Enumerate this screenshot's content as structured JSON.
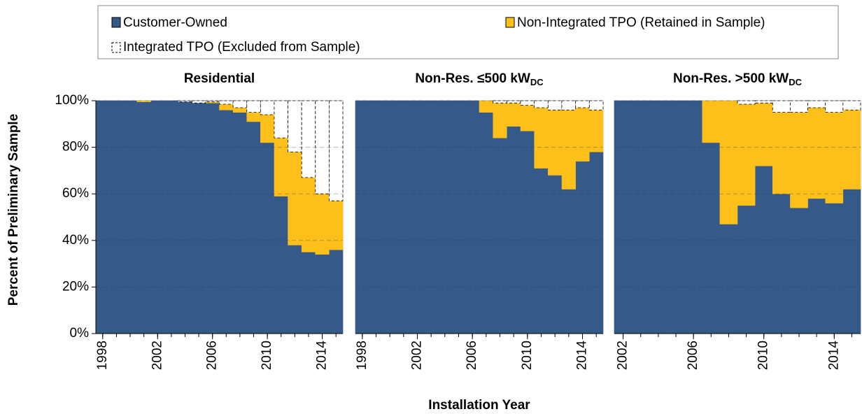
{
  "y_label": "Percent of Preliminary Sample",
  "x_label": "Installation Year",
  "chart_data": [
    {
      "type": "stacked-step",
      "title": "Residential",
      "x": [
        1998,
        1999,
        2000,
        2001,
        2002,
        2003,
        2004,
        2005,
        2006,
        2007,
        2008,
        2009,
        2010,
        2011,
        2012,
        2013,
        2014,
        2015
      ],
      "xlim": [
        1997.5,
        2015.5
      ],
      "xticks": [
        1998,
        2002,
        2006,
        2010,
        2014
      ],
      "ylim": [
        0,
        100
      ],
      "yticks": [
        {
          "value": 0,
          "label": "0%"
        },
        {
          "value": 20,
          "label": "20%"
        },
        {
          "value": 40,
          "label": "40%"
        },
        {
          "value": 60,
          "label": "60%"
        },
        {
          "value": 80,
          "label": "80%"
        },
        {
          "value": 100,
          "label": "100%"
        }
      ],
      "grid": true,
      "series": [
        {
          "name": "Customer-Owned",
          "color": "#355a8a",
          "values": [
            100,
            100,
            100,
            99.5,
            100,
            100,
            99.5,
            99,
            99,
            96,
            95,
            91,
            82,
            59,
            38,
            35,
            34,
            36
          ]
        },
        {
          "name": "Non-Integrated TPO (Retained in Sample)",
          "color": "#fdc01a",
          "values": [
            0,
            0,
            0,
            0.5,
            0,
            0,
            0,
            0,
            0.5,
            2.5,
            2,
            4,
            12,
            25,
            40,
            32,
            26,
            21
          ]
        },
        {
          "name": "Integrated TPO (Excluded from Sample)",
          "color": "#ffffff",
          "values": [
            0,
            0,
            0,
            0,
            0,
            0,
            0.5,
            1,
            0.5,
            1.5,
            3,
            5,
            6,
            16,
            22,
            33,
            40,
            43
          ]
        }
      ]
    },
    {
      "type": "stacked-step",
      "title": "Non-Res. ≤500 kW",
      "title_subscript": "DC",
      "x": [
        1998,
        1999,
        2000,
        2001,
        2002,
        2003,
        2004,
        2005,
        2006,
        2007,
        2008,
        2009,
        2010,
        2011,
        2012,
        2013,
        2014,
        2015
      ],
      "xlim": [
        1997.5,
        2015.5
      ],
      "xticks": [
        1998,
        2002,
        2006,
        2010,
        2014
      ],
      "series": [
        {
          "values": [
            100,
            100,
            100,
            100,
            100,
            100,
            100,
            100,
            100,
            95,
            84,
            89,
            87,
            71,
            68,
            62,
            74,
            78
          ]
        },
        {
          "values": [
            0,
            0,
            0,
            0,
            0,
            0,
            0,
            0,
            0,
            5,
            15,
            10,
            11,
            26,
            28,
            34,
            23,
            18
          ]
        },
        {
          "values": [
            0,
            0,
            0,
            0,
            0,
            0,
            0,
            0,
            0,
            0,
            1,
            1,
            2,
            3,
            4,
            4,
            3,
            4
          ]
        }
      ]
    },
    {
      "type": "stacked-step",
      "title": "Non-Res. >500 kW",
      "title_subscript": "DC",
      "x": [
        2002,
        2003,
        2004,
        2005,
        2006,
        2007,
        2008,
        2009,
        2010,
        2011,
        2012,
        2013,
        2014,
        2015
      ],
      "xlim": [
        2001.5,
        2015.5
      ],
      "xticks": [
        2002,
        2006,
        2010,
        2014
      ],
      "series": [
        {
          "values": [
            100,
            100,
            100,
            100,
            100,
            82,
            47,
            55,
            72,
            60,
            54,
            58,
            56,
            62
          ]
        },
        {
          "values": [
            0,
            0,
            0,
            0,
            0,
            18,
            53,
            43.5,
            27,
            35,
            41,
            39,
            39,
            34
          ]
        },
        {
          "values": [
            0,
            0,
            0,
            0,
            0,
            0,
            0,
            1.5,
            1,
            5,
            5,
            3,
            5,
            4
          ]
        }
      ]
    }
  ]
}
